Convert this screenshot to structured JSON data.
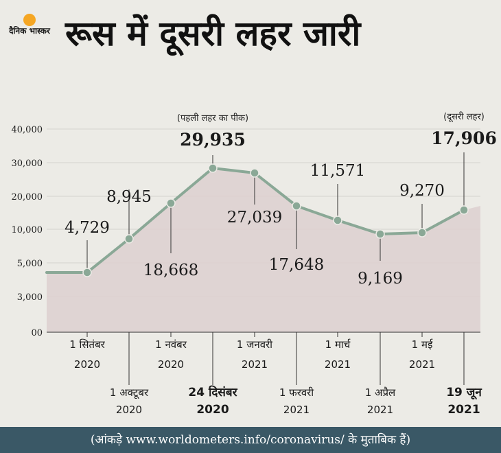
{
  "brand": {
    "logo_text": "दैनिक भास्कर",
    "accent": "#f5a623"
  },
  "title": "रूस में दूसरी लहर जारी",
  "footer": "(आंकड़े www.worldometers.info/coronavirus/ के मुताबिक हैं)",
  "colors": {
    "line": "#8aa896",
    "fill": "#ddd0cf",
    "footer_bg": "#3a5866"
  },
  "chart_data": {
    "type": "area",
    "title": "",
    "xlabel": "",
    "ylabel": "",
    "y_ticks": [
      "00",
      "3,000",
      "5,000",
      "10,000",
      "20,000",
      "30,000",
      "40,000"
    ],
    "points": [
      {
        "date": "2020-09-01",
        "value": 4729,
        "label": "4,729",
        "emphasis": false
      },
      {
        "date": "2020-10-01",
        "value": 8945,
        "label": "8,945",
        "emphasis": false
      },
      {
        "date": "2020-11-01",
        "value": 18668,
        "label": "18,668",
        "emphasis": false
      },
      {
        "date": "2020-12-24",
        "value": 29935,
        "label": "29,935",
        "emphasis": true,
        "note": "(पहली लहर का पीक)"
      },
      {
        "date": "2021-01-01",
        "value": 27039,
        "label": "27,039",
        "emphasis": false
      },
      {
        "date": "2021-02-01",
        "value": 17648,
        "label": "17,648",
        "emphasis": false
      },
      {
        "date": "2021-03-01",
        "value": 11571,
        "label": "11,571",
        "emphasis": false
      },
      {
        "date": "2021-04-01",
        "value": 9169,
        "label": "9,169",
        "emphasis": false
      },
      {
        "date": "2021-05-01",
        "value": 9270,
        "label": "9,270",
        "emphasis": false
      },
      {
        "date": "2021-06-19",
        "value": 17906,
        "label": "17,906",
        "emphasis": true,
        "note": "(दूसरी लहर)"
      }
    ],
    "x_labels": [
      {
        "line1": "1 सितंबर",
        "line2": "2020",
        "bold": false
      },
      {
        "line1": "1 अक्टूबर",
        "line2": "2020",
        "bold": false
      },
      {
        "line1": "1 नवंबर",
        "line2": "2020",
        "bold": false
      },
      {
        "line1": "24 दिसंबर",
        "line2": "2020",
        "bold": true
      },
      {
        "line1": "1 जनवरी",
        "line2": "2021",
        "bold": false
      },
      {
        "line1": "1 फरवरी",
        "line2": "2021",
        "bold": false
      },
      {
        "line1": "1 मार्च",
        "line2": "2021",
        "bold": false
      },
      {
        "line1": "1 अप्रैल",
        "line2": "2021",
        "bold": false
      },
      {
        "line1": "1 मई",
        "line2": "2021",
        "bold": false
      },
      {
        "line1": "19 जून",
        "line2": "2021",
        "bold": true
      }
    ]
  }
}
